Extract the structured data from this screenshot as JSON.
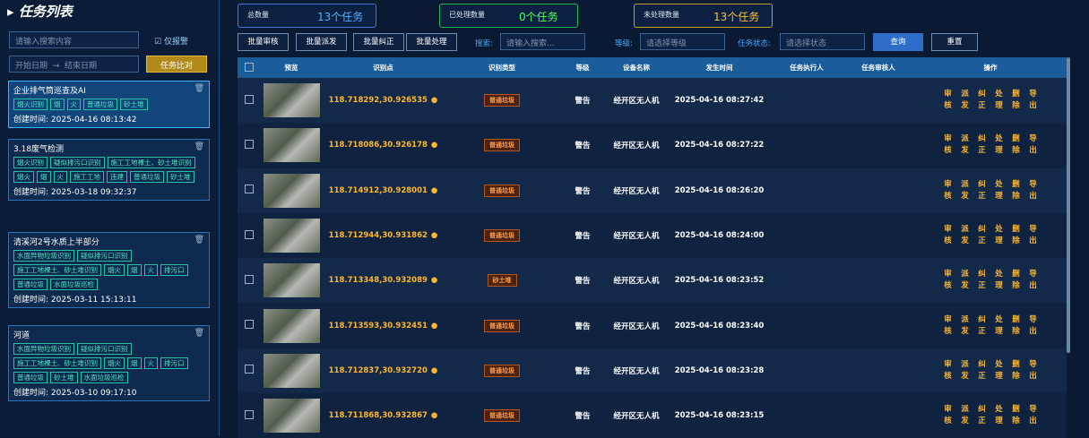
{
  "sidebar": {
    "title": "任务列表",
    "search_placeholder": "请输入搜索内容",
    "alarm_only": "仅报警",
    "start_date": "开始日期",
    "end_date": "结束日期",
    "compare_button": "任务比对",
    "tasks": [
      {
        "name": "企业排气筒巡查及AI",
        "tags": [
          "烟火识别",
          "烟",
          "火",
          "普通垃圾",
          "砂土堆"
        ],
        "created": "创建时间: 2025-04-16 08:13:42"
      },
      {
        "name": "3.18废气检测",
        "tags": [
          "烟火识别",
          "疑似排污口识别",
          "施工工地裸土、砂土堆识别",
          "烟火",
          "烟",
          "火",
          "施工工地",
          "违建",
          "普通垃圾",
          "砂土堆"
        ],
        "created": "创建时间: 2025-03-18 09:32:37"
      },
      {
        "name": "清溪河2号水质上半部分",
        "tags": [
          "水面异物垃圾识别",
          "疑似排污口识别",
          "施工工地裸土、砂土堆识别",
          "烟火",
          "烟",
          "火",
          "排污口",
          "普通垃圾",
          "水面垃圾巡检"
        ],
        "created": "创建时间: 2025-03-11 15:13:11"
      },
      {
        "name": "河道",
        "tags": [
          "水面异物垃圾识别",
          "疑似排污口识别",
          "施工工地裸土、砂土堆识别",
          "烟火",
          "烟",
          "火",
          "排污口",
          "普通垃圾",
          "砂土堆",
          "水面垃圾巡检"
        ],
        "created": "创建时间: 2025-03-10 09:17:10"
      }
    ]
  },
  "stats": [
    {
      "label": "总数量",
      "value": "13个任务"
    },
    {
      "label": "已处理数量",
      "value": "0个任务"
    },
    {
      "label": "未处理数量",
      "value": "13个任务"
    }
  ],
  "toolbar": {
    "batch_buttons": [
      "批量审核",
      "批量派发",
      "批量纠正",
      "批量处理"
    ],
    "search_label": "搜索:",
    "search_placeholder": "请输入搜索...",
    "level_label": "等级:",
    "level_placeholder": "请选择等级",
    "status_label": "任务状态:",
    "status_placeholder": "请选择状态",
    "query": "查询",
    "reset": "重置"
  },
  "table": {
    "headers": [
      "预览",
      "识别点",
      "识别类型",
      "等级",
      "设备名称",
      "发生时间",
      "任务执行人",
      "任务审核人",
      "操作"
    ],
    "actions": [
      "审核",
      "派发",
      "纠正",
      "处理",
      "删除",
      "导出"
    ],
    "rows": [
      [
        "118.718292,30.926535",
        "普通垃圾",
        "警告",
        "经开区无人机",
        "2025-04-16 08:27:42"
      ],
      [
        "118.718086,30.926178",
        "普通垃圾",
        "警告",
        "经开区无人机",
        "2025-04-16 08:27:22"
      ],
      [
        "118.714912,30.928001",
        "普通垃圾",
        "警告",
        "经开区无人机",
        "2025-04-16 08:26:20"
      ],
      [
        "118.712944,30.931862",
        "普通垃圾",
        "警告",
        "经开区无人机",
        "2025-04-16 08:24:00"
      ],
      [
        "118.713348,30.932089",
        "砂土堆",
        "警告",
        "经开区无人机",
        "2025-04-16 08:23:52"
      ],
      [
        "118.713593,30.932451",
        "普通垃圾",
        "警告",
        "经开区无人机",
        "2025-04-16 08:23:40"
      ],
      [
        "118.712837,30.932720",
        "普通垃圾",
        "警告",
        "经开区无人机",
        "2025-04-16 08:23:28"
      ],
      [
        "118.711868,30.932867",
        "普通垃圾",
        "警告",
        "经开区无人机",
        "2025-04-16 08:23:15"
      ]
    ]
  }
}
